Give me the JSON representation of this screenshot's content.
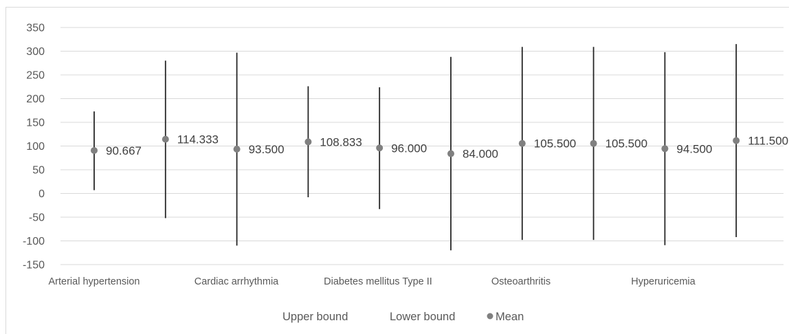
{
  "chart_data": {
    "type": "scatter",
    "title": "",
    "xlabel": "",
    "ylabel": "",
    "ylim": [
      -150,
      350
    ],
    "yticks": [
      350,
      300,
      250,
      200,
      150,
      100,
      50,
      0,
      -50,
      -100,
      -150
    ],
    "grid": true,
    "legend_position": "bottom",
    "category_labels": [
      "Arterial hypertension",
      "Cardiac arrhythmia",
      "Diabetes mellitus Type II",
      "Osteoarthritis",
      "Hyperuricemia"
    ],
    "legend": [
      "Upper bound",
      "Lower bound",
      "Mean"
    ],
    "points": [
      {
        "upper": 173,
        "lower": 7,
        "mean": 90.667,
        "label": "90.667"
      },
      {
        "upper": 280,
        "lower": -52,
        "mean": 114.333,
        "label": "114.333"
      },
      {
        "upper": 297,
        "lower": -110,
        "mean": 93.5,
        "label": "93.500"
      },
      {
        "upper": 226,
        "lower": -8,
        "mean": 108.833,
        "label": "108.833"
      },
      {
        "upper": 224,
        "lower": -33,
        "mean": 96.0,
        "label": "96.000"
      },
      {
        "upper": 288,
        "lower": -120,
        "mean": 84.0,
        "label": "84.000"
      },
      {
        "upper": 309,
        "lower": -98,
        "mean": 105.5,
        "label": "105.500"
      },
      {
        "upper": 309,
        "lower": -98,
        "mean": 105.5,
        "label": "105.500"
      },
      {
        "upper": 298,
        "lower": -109,
        "mean": 94.5,
        "label": "94.500"
      },
      {
        "upper": 315,
        "lower": -92,
        "mean": 111.5,
        "label": "111.500"
      }
    ],
    "colors": {
      "mean": "#808080",
      "range": "#262626",
      "grid": "#d9d9d9"
    }
  }
}
